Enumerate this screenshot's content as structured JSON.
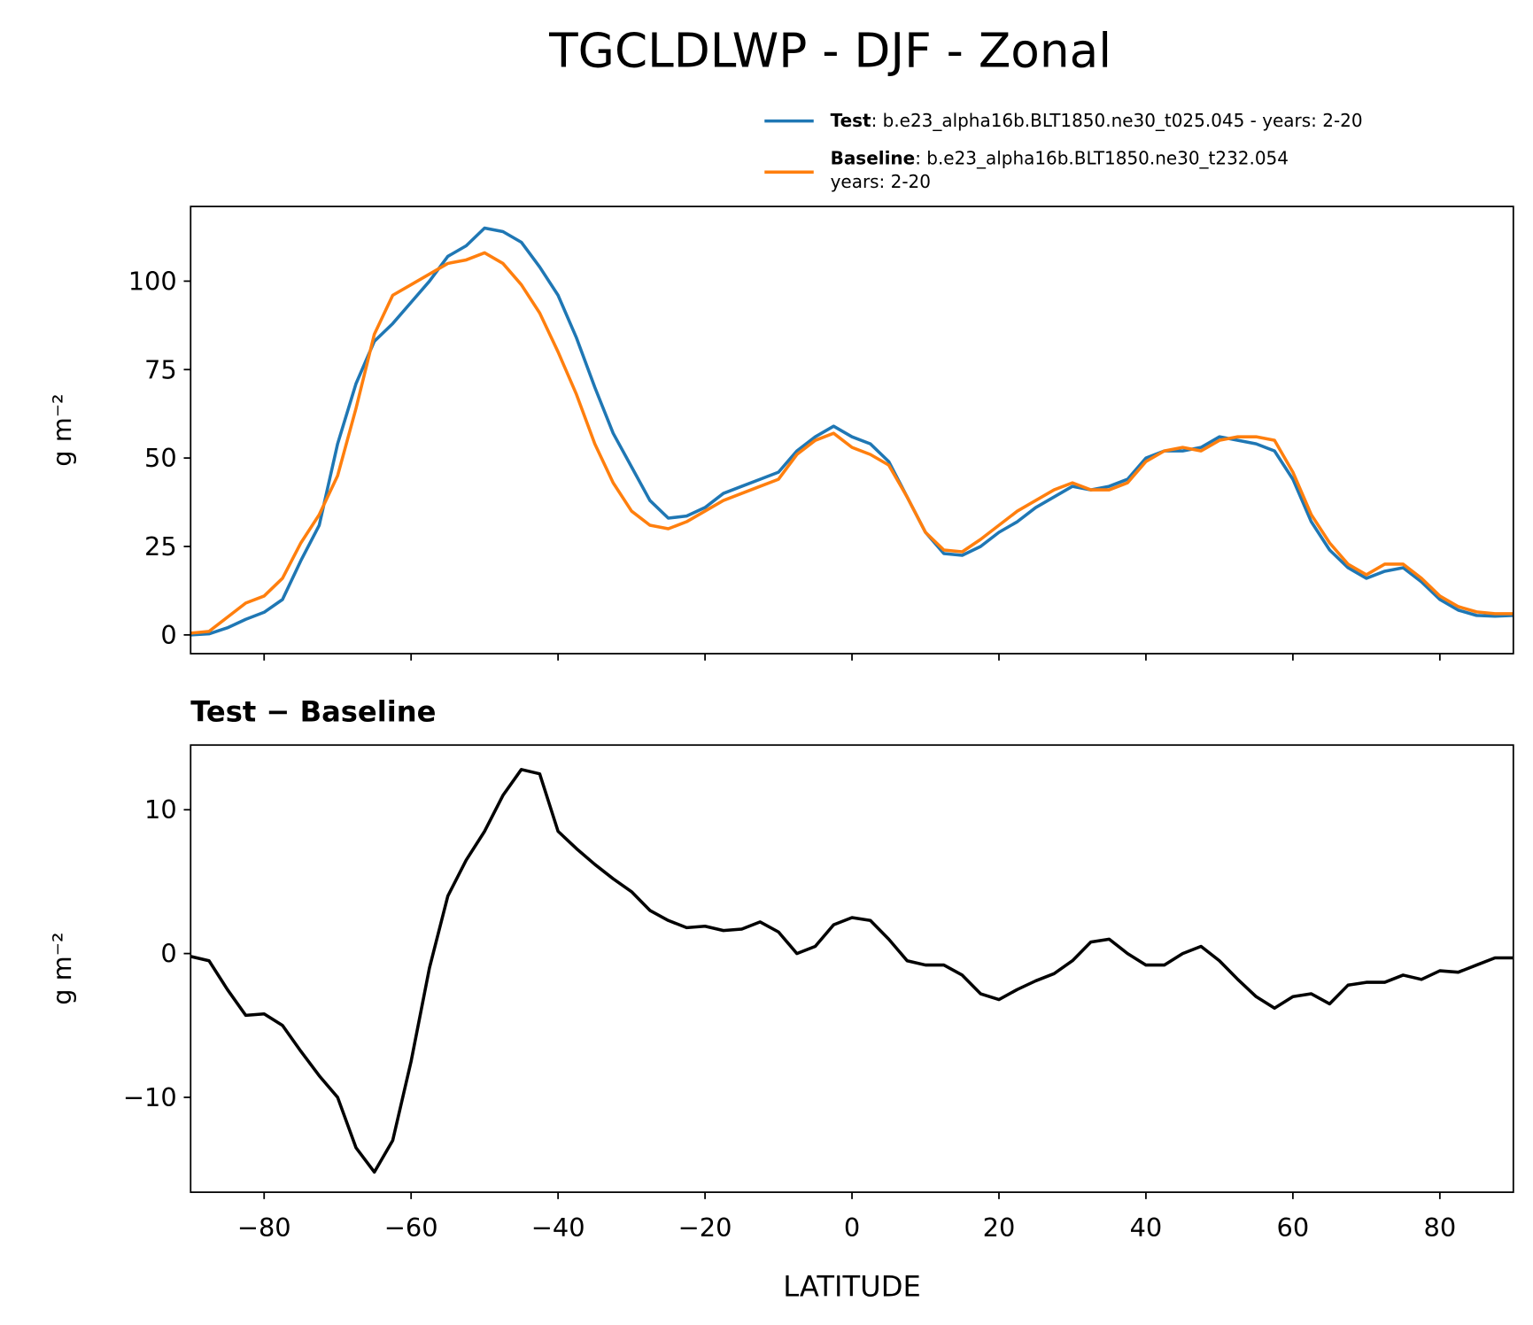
{
  "chart_data": [
    {
      "type": "line",
      "title": "TGCLDLWP - DJF - Zonal",
      "ylabel": "g m⁻²",
      "x": [
        -90,
        -87.5,
        -85,
        -82.5,
        -80,
        -77.5,
        -75,
        -72.5,
        -70,
        -67.5,
        -65,
        -62.5,
        -60,
        -57.5,
        -55,
        -52.5,
        -50,
        -47.5,
        -45,
        -42.5,
        -40,
        -37.5,
        -35,
        -32.5,
        -30,
        -27.5,
        -25,
        -22.5,
        -20,
        -17.5,
        -15,
        -12.5,
        -10,
        -7.5,
        -5,
        -2.5,
        0,
        2.5,
        5,
        7.5,
        10,
        12.5,
        15,
        17.5,
        20,
        22.5,
        25,
        27.5,
        30,
        32.5,
        35,
        37.5,
        40,
        42.5,
        45,
        47.5,
        50,
        52.5,
        55,
        57.5,
        60,
        62.5,
        65,
        67.5,
        70,
        72.5,
        75,
        77.5,
        80,
        82.5,
        85,
        87.5,
        90
      ],
      "series": [
        {
          "name": "Test",
          "description": [
            ": b.e23_alpha16b.BLT1850.ne30_t025.045 - years: 2-20"
          ],
          "color": "#1f77b4",
          "values": [
            0,
            0.3,
            2,
            4.4,
            6.4,
            10,
            21,
            31,
            54,
            71,
            83,
            88,
            94,
            100,
            107,
            110,
            115,
            114,
            111,
            104,
            96,
            84,
            70,
            57,
            47.5,
            38,
            33,
            33.6,
            36,
            40,
            42,
            44,
            46,
            52,
            56,
            59,
            56,
            54,
            49,
            39,
            29,
            23,
            22.5,
            25,
            29,
            32,
            36,
            39,
            42,
            41,
            42,
            44,
            50,
            52,
            52,
            53,
            56,
            55,
            54,
            52,
            44,
            32,
            24,
            19,
            16,
            18,
            19,
            15,
            10,
            7,
            5.5,
            5.3,
            5.5
          ]
        },
        {
          "name": "Baseline",
          "description": [
            ": b.e23_alpha16b.BLT1850.ne30_t232.054",
            "years: 2-20"
          ],
          "color": "#ff7f0e",
          "values": [
            0.5,
            1,
            5,
            9,
            11,
            16,
            26,
            34,
            45,
            64,
            85,
            96,
            99,
            102,
            105,
            106,
            108,
            105,
            99,
            91,
            80,
            68,
            54,
            43,
            35,
            31,
            30,
            32,
            35,
            38,
            40,
            42,
            44,
            51,
            55,
            57,
            53,
            51,
            48,
            39,
            29,
            24,
            23.5,
            27,
            31,
            35,
            38,
            41,
            43,
            41,
            41,
            43,
            49,
            52,
            53,
            52,
            55,
            56,
            56,
            55,
            46,
            34,
            26,
            20,
            17,
            20,
            20,
            16,
            11,
            8,
            6.5,
            6,
            6
          ]
        }
      ],
      "xlim": [
        -90,
        90
      ],
      "xticks": [
        -80,
        -60,
        -40,
        -20,
        0,
        20,
        40,
        60,
        80
      ],
      "ylim": [
        -5.3,
        121.1
      ],
      "yticks": [
        0,
        25,
        50,
        75,
        100
      ]
    },
    {
      "type": "line",
      "title": "Test − Baseline",
      "ylabel": "g m⁻²",
      "xlabel": "LATITUDE",
      "x": [
        -90,
        -87.5,
        -85,
        -82.5,
        -80,
        -77.5,
        -75,
        -72.5,
        -70,
        -67.5,
        -65,
        -62.5,
        -60,
        -57.5,
        -55,
        -52.5,
        -50,
        -47.5,
        -45,
        -42.5,
        -40,
        -37.5,
        -35,
        -32.5,
        -30,
        -27.5,
        -25,
        -22.5,
        -20,
        -17.5,
        -15,
        -12.5,
        -10,
        -7.5,
        -5,
        -2.5,
        0,
        2.5,
        5,
        7.5,
        10,
        12.5,
        15,
        17.5,
        20,
        22.5,
        25,
        27.5,
        30,
        32.5,
        35,
        37.5,
        40,
        42.5,
        45,
        47.5,
        50,
        52.5,
        55,
        57.5,
        60,
        62.5,
        65,
        67.5,
        70,
        72.5,
        75,
        77.5,
        80,
        82.5,
        85,
        87.5,
        90
      ],
      "series": [
        {
          "color": "#000000",
          "values": [
            -0.2,
            -0.5,
            -2.5,
            -4.3,
            -4.2,
            -5,
            -6.8,
            -8.5,
            -10,
            -13.5,
            -15.2,
            -13,
            -7.5,
            -1,
            4,
            6.5,
            8.5,
            11,
            12.8,
            12.5,
            8.5,
            7.3,
            6.2,
            5.2,
            4.3,
            3,
            2.3,
            1.8,
            1.9,
            1.6,
            1.7,
            2.2,
            1.5,
            0,
            0.5,
            2,
            2.5,
            2.3,
            1,
            -0.5,
            -0.8,
            -0.8,
            -1.5,
            -2.8,
            -3.2,
            -2.5,
            -1.9,
            -1.4,
            -0.5,
            0.8,
            1,
            0,
            -0.8,
            -0.8,
            0,
            0.5,
            -0.5,
            -1.8,
            -3,
            -3.8,
            -3,
            -2.8,
            -3.5,
            -2.2,
            -2,
            -2,
            -1.5,
            -1.8,
            -1.2,
            -1.3,
            -0.8,
            -0.3,
            -0.3
          ]
        }
      ],
      "xlim": [
        -90,
        90
      ],
      "xticks": [
        {
          "value": -80,
          "label": "−80"
        },
        {
          "value": -60,
          "label": "−60"
        },
        {
          "value": -40,
          "label": "−40"
        },
        {
          "value": -20,
          "label": "−20"
        },
        0,
        20,
        40,
        60,
        80
      ],
      "ylim": [
        -16.6,
        14.5
      ],
      "yticks": [
        {
          "value": -10,
          "label": "−10"
        },
        0,
        10
      ]
    }
  ]
}
